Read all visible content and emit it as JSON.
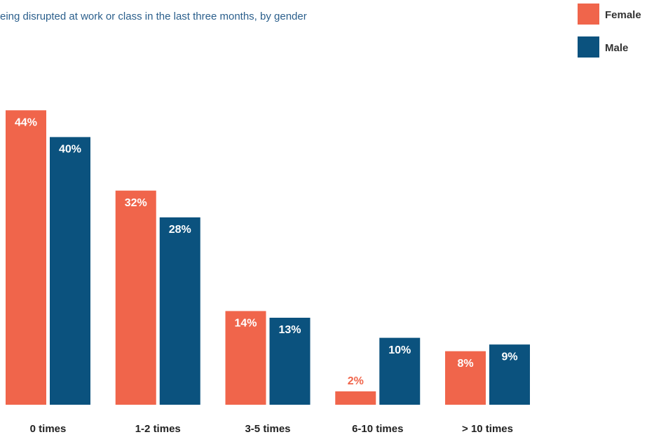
{
  "chart_data": {
    "type": "bar",
    "title": "eing disrupted at work or class in the last three months, by gender",
    "categories": [
      "0 times",
      "1-2 times",
      "3-5 times",
      "6-10 times",
      "> 10 times"
    ],
    "series": [
      {
        "name": "Female",
        "color": "#f0654b",
        "values": [
          44,
          32,
          14,
          2,
          8
        ],
        "value_labels": [
          "44%",
          "32%",
          "14%",
          "2%",
          "8%"
        ]
      },
      {
        "name": "Male",
        "color": "#0b527e",
        "values": [
          40,
          28,
          13,
          10,
          9
        ],
        "value_labels": [
          "40%",
          "28%",
          "13%",
          "10%",
          "9%"
        ]
      }
    ],
    "ylim": [
      0,
      50
    ]
  }
}
